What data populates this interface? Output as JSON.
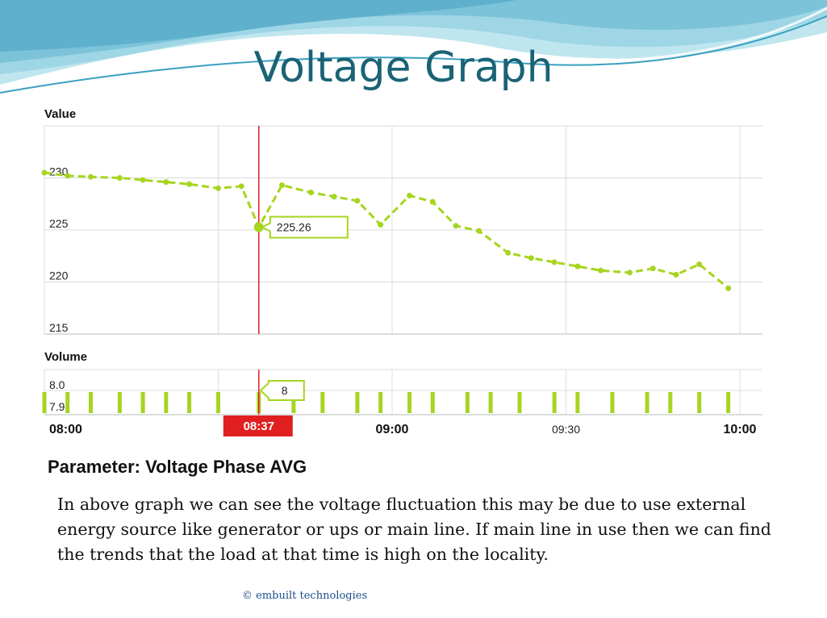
{
  "slide": {
    "title": "Voltage Graph",
    "description": "In above graph we can see the voltage fluctuation this may be due to use external energy source like generator or  ups or main line. If main line in use then we can find the trends that the load at that time is high on the locality.",
    "footer": "© embuilt technologies"
  },
  "colors": {
    "series": "#a6d51f",
    "cursor": "#e02020",
    "title": "#1a6375",
    "grid": "#dcdcdc"
  },
  "chart_data": {
    "type": "line",
    "parameter": "Parameter: Voltage Phase AVG",
    "grid": true,
    "upper": {
      "ylabel": "Value",
      "yticks": [
        215,
        220,
        225,
        230
      ],
      "ylim": [
        215,
        235
      ],
      "values": [
        {
          "x": "08:00",
          "y": 230.5
        },
        {
          "x": "08:04",
          "y": 230.2
        },
        {
          "x": "08:08",
          "y": 230.1
        },
        {
          "x": "08:13",
          "y": 230.0
        },
        {
          "x": "08:17",
          "y": 229.8
        },
        {
          "x": "08:21",
          "y": 229.6
        },
        {
          "x": "08:25",
          "y": 229.4
        },
        {
          "x": "08:30",
          "y": 229.0
        },
        {
          "x": "08:34",
          "y": 229.2
        },
        {
          "x": "08:37",
          "y": 225.26
        },
        {
          "x": "08:41",
          "y": 229.3
        },
        {
          "x": "08:46",
          "y": 228.6
        },
        {
          "x": "08:50",
          "y": 228.2
        },
        {
          "x": "08:54",
          "y": 227.8
        },
        {
          "x": "08:58",
          "y": 225.5
        },
        {
          "x": "09:03",
          "y": 228.3
        },
        {
          "x": "09:07",
          "y": 227.7
        },
        {
          "x": "09:11",
          "y": 225.4
        },
        {
          "x": "09:15",
          "y": 224.9
        },
        {
          "x": "09:20",
          "y": 222.8
        },
        {
          "x": "09:24",
          "y": 222.3
        },
        {
          "x": "09:28",
          "y": 221.9
        },
        {
          "x": "09:32",
          "y": 221.5
        },
        {
          "x": "09:36",
          "y": 221.1
        },
        {
          "x": "09:41",
          "y": 220.9
        },
        {
          "x": "09:45",
          "y": 221.3
        },
        {
          "x": "09:49",
          "y": 220.7
        },
        {
          "x": "09:53",
          "y": 221.7
        },
        {
          "x": "09:58",
          "y": 219.4
        }
      ]
    },
    "lower": {
      "ylabel": "Volume",
      "yticks": [
        7.9,
        8.0
      ],
      "values": [
        {
          "x": "08:00",
          "y": 8
        },
        {
          "x": "08:04",
          "y": 8
        },
        {
          "x": "08:08",
          "y": 8
        },
        {
          "x": "08:13",
          "y": 8
        },
        {
          "x": "08:17",
          "y": 8
        },
        {
          "x": "08:21",
          "y": 8
        },
        {
          "x": "08:25",
          "y": 8
        },
        {
          "x": "08:30",
          "y": 8
        },
        {
          "x": "08:37",
          "y": 8
        },
        {
          "x": "08:43",
          "y": 8
        },
        {
          "x": "08:48",
          "y": 8
        },
        {
          "x": "08:54",
          "y": 8
        },
        {
          "x": "08:58",
          "y": 8
        },
        {
          "x": "09:03",
          "y": 8
        },
        {
          "x": "09:07",
          "y": 8
        },
        {
          "x": "09:13",
          "y": 8
        },
        {
          "x": "09:17",
          "y": 8
        },
        {
          "x": "09:22",
          "y": 8
        },
        {
          "x": "09:28",
          "y": 8
        },
        {
          "x": "09:32",
          "y": 8
        },
        {
          "x": "09:38",
          "y": 8
        },
        {
          "x": "09:44",
          "y": 8
        },
        {
          "x": "09:48",
          "y": 8
        },
        {
          "x": "09:53",
          "y": 8
        },
        {
          "x": "09:58",
          "y": 8
        }
      ]
    },
    "xticks": [
      "08:00",
      "09:00",
      "09:30",
      "10:00"
    ],
    "xticks_bold": [
      "08:00",
      "09:00",
      "10:00"
    ],
    "cursor": {
      "x": "08:37",
      "time_label": "08:37",
      "value_label": "225.26",
      "volume_label": "8"
    }
  }
}
